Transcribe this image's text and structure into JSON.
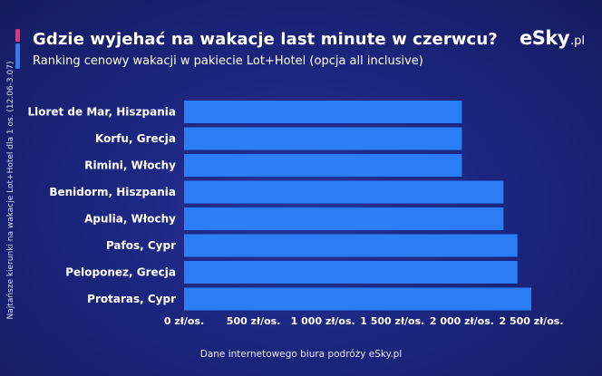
{
  "header": {
    "title": "Gdzie wyjehać na wakacje last minute w czerwcu?",
    "subtitle": "Ranking cenowy wakacji w pakiecie Lot+Hotel (opcja all inclusive)"
  },
  "logo": {
    "brand": "eSky",
    "tld": ".pl"
  },
  "side_note": "Najtańsze kierunki na wakacje Lot+Hotel dla 1 os. (12.06-3.07)",
  "footer": {
    "source": "Dane internetowego biura podróży eSky.pl"
  },
  "colors": {
    "bar": "#2a7df2",
    "accent_pink": "#e8317a",
    "accent_blue": "#2a7df2"
  },
  "chart_data": {
    "type": "bar",
    "orientation": "horizontal",
    "title": "",
    "xlabel": "",
    "ylabel": "",
    "categories": [
      "Lloret de Mar, Hiszpania",
      "Korfu, Grecja",
      "Rimini, Włochy",
      "Benidorm, Hiszpania",
      "Apulia, Włochy",
      "Pafos, Cypr",
      "Peloponez, Grecja",
      "Protaras, Cypr"
    ],
    "values": [
      2000,
      2000,
      2000,
      2300,
      2300,
      2400,
      2400,
      2500
    ],
    "xlim": [
      0,
      2750
    ],
    "ticks": [
      0,
      500,
      1000,
      1500,
      2000,
      2500
    ],
    "tick_labels": [
      "0 zł/os.",
      "500 zł/os.",
      "1 000 zł/os.",
      "1 500 zł/os.",
      "2 000 zł/os.",
      "2 500 zł/os."
    ],
    "grid": false,
    "legend": "none"
  }
}
